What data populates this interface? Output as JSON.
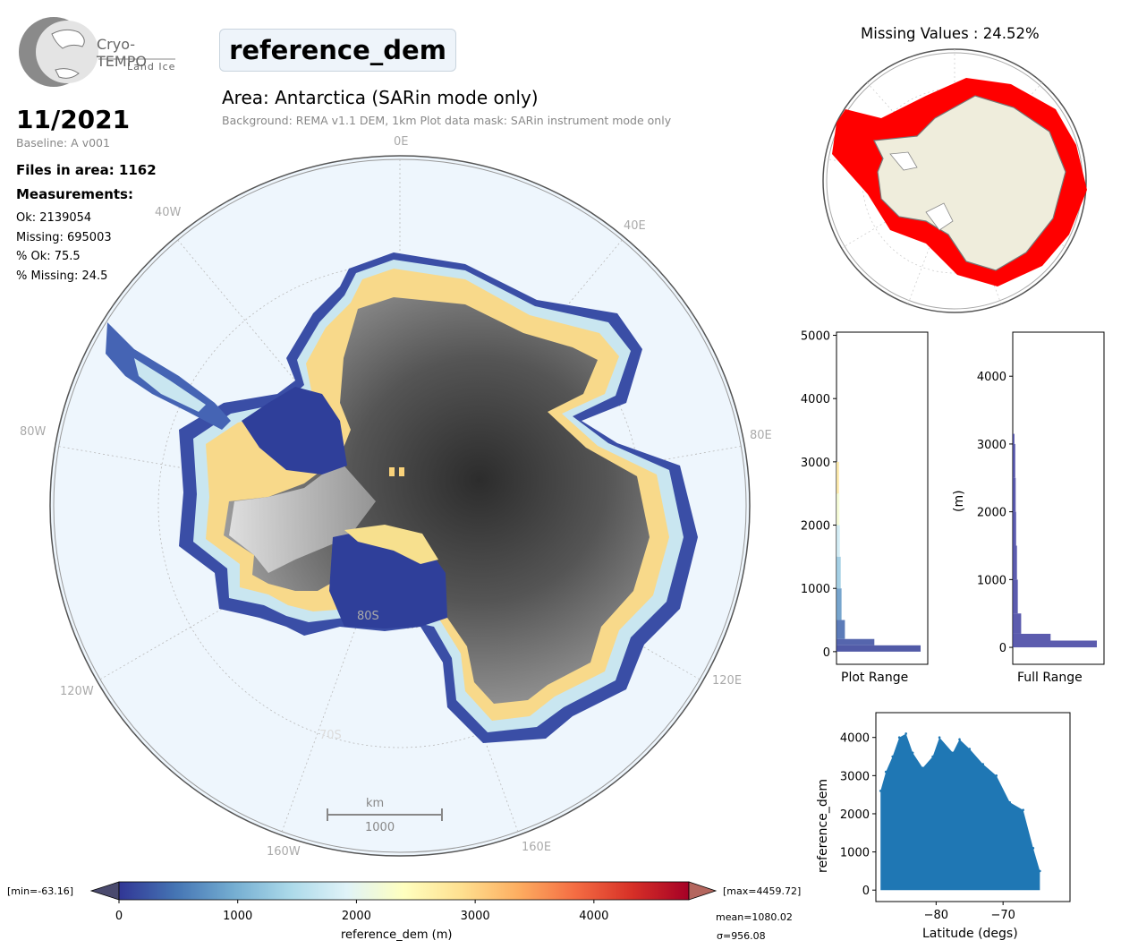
{
  "logo": {
    "title": "Cryo-TEMPO",
    "subtitle": "Land Ice"
  },
  "parameter": "reference_dem",
  "area_title": "Area: Antarctica (SARin mode only)",
  "background_note": "Background: REMA v1.1 DEM, 1km   Plot data mask: SARin instrument mode only",
  "date": "11/2021",
  "baseline": "Baseline: A v001",
  "files_in_area": "Files in area: 1162",
  "measurements_heading": "Measurements:",
  "stats": {
    "ok": "Ok: 2139054",
    "missing": "Missing: 695003",
    "pct_ok": "% Ok: 75.5",
    "pct_missing": "% Missing: 24.5"
  },
  "map": {
    "longitude_labels": [
      "0E",
      "40E",
      "80E",
      "120E",
      "160E",
      "160W",
      "120W",
      "80W",
      "40W"
    ],
    "latitude_labels": [
      "80S",
      "70S"
    ],
    "scalebar_unit": "km",
    "scalebar_value": "1000"
  },
  "missing_map": {
    "title": "Missing Values : 24.52%",
    "colors": {
      "missing": "#ff0000",
      "land": "#efeddc",
      "ocean": "#ffffff"
    }
  },
  "colorbar": {
    "min_label": "[min=-63.16]",
    "max_label": "[max=4459.72]",
    "ticks": [
      "0",
      "1000",
      "2000",
      "3000",
      "4000"
    ],
    "label": "reference_dem (m)",
    "mean": "mean=1080.02",
    "sigma": "σ=956.08",
    "range": [
      0,
      4800
    ],
    "colormap": "RdYlBu_r"
  },
  "chart_data": [
    {
      "type": "bar",
      "title": "",
      "xlabel": "Plot Range",
      "ylabel": "",
      "orientation": "horizontal",
      "ylim": [
        -200,
        5050
      ],
      "yticks": [
        0,
        1000,
        2000,
        3000,
        4000,
        5000
      ],
      "bin_edges": [
        0,
        100,
        200,
        500,
        1000,
        1500,
        2000,
        2500,
        3000
      ],
      "values": [
        1.0,
        0.45,
        0.1,
        0.06,
        0.05,
        0.04,
        0.035,
        0.03
      ]
    },
    {
      "type": "bar",
      "title": "",
      "xlabel": "Full Range",
      "ylabel": "(m)",
      "orientation": "horizontal",
      "ylim": [
        -250,
        4650
      ],
      "yticks": [
        0,
        1000,
        2000,
        3000,
        4000
      ],
      "bin_edges": [
        0,
        100,
        200,
        500,
        1000,
        1500,
        2000,
        2500,
        3000,
        3150
      ],
      "values": [
        1.0,
        0.45,
        0.1,
        0.06,
        0.05,
        0.04,
        0.035,
        0.03,
        0.02
      ],
      "color": "#3f3fa0"
    },
    {
      "type": "scatter",
      "title": "",
      "xlabel": "Latitude (degs)",
      "ylabel": "reference_dem",
      "xlim": [
        -89,
        -60
      ],
      "ylim": [
        -300,
        4650
      ],
      "xticks": [
        -80,
        -70
      ],
      "yticks": [
        0,
        1000,
        2000,
        3000,
        4000
      ],
      "color": "#1f77b4",
      "envelope": [
        [
          -88.3,
          2600
        ],
        [
          -87.5,
          3100
        ],
        [
          -86.5,
          3500
        ],
        [
          -85.5,
          4000
        ],
        [
          -84.5,
          4100
        ],
        [
          -83.5,
          3600
        ],
        [
          -82.0,
          3200
        ],
        [
          -80.5,
          3500
        ],
        [
          -79.5,
          4000
        ],
        [
          -77.5,
          3600
        ],
        [
          -76.5,
          3950
        ],
        [
          -75.0,
          3700
        ],
        [
          -73.0,
          3300
        ],
        [
          -71.0,
          3000
        ],
        [
          -69.0,
          2300
        ],
        [
          -67.0,
          2100
        ],
        [
          -65.5,
          1100
        ],
        [
          -64.5,
          500
        ]
      ]
    }
  ]
}
